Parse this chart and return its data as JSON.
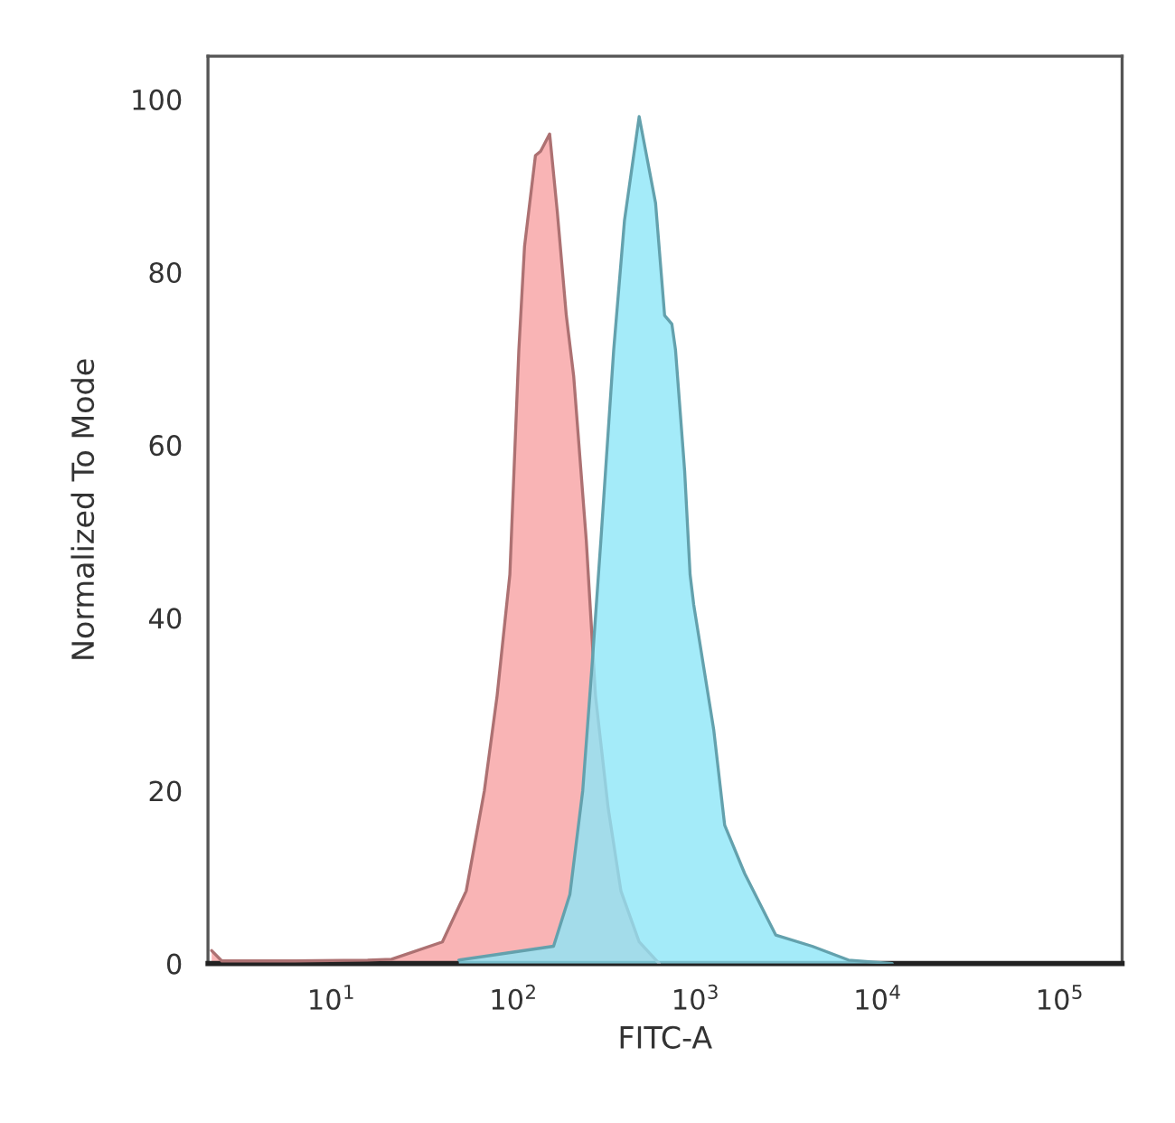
{
  "chart_data": {
    "type": "area",
    "xlabel": "FITC-A",
    "ylabel": "Normalized To Mode",
    "log": "x",
    "xlim": [
      2.1,
      220000
    ],
    "ylim": [
      0,
      105
    ],
    "xticks": [
      {
        "value": 10,
        "label": "10$^{1}$"
      },
      {
        "value": 100,
        "label": "10$^{2}$"
      },
      {
        "value": 1000,
        "label": "10$^{3}$"
      },
      {
        "value": 10000,
        "label": "10$^{4}$"
      },
      {
        "value": 100000,
        "label": "10$^{5}$"
      }
    ],
    "yticks": [
      0,
      20,
      40,
      60,
      80,
      100
    ],
    "grid": false,
    "legend": false,
    "series": [
      {
        "color": "#f7a1a3",
        "x": [
          2.2,
          2.5,
          6.3,
          15.8,
          21.4,
          40.7,
          55.0,
          69.2,
          81.3,
          95.5,
          107,
          115,
          132,
          141,
          158,
          174,
          195,
          214,
          251,
          282,
          331,
          389,
          490,
          631
        ],
        "values": [
          1.5,
          0.3,
          0.3,
          0.4,
          0.5,
          2.5,
          8.4,
          20,
          31,
          45,
          71,
          83,
          93.5,
          94,
          96,
          87,
          75,
          68,
          49,
          31,
          18,
          8.4,
          2.5,
          0
        ]
      },
      {
        "color": "#8de6f7",
        "x": [
          50.1,
          166,
          204,
          240,
          269,
          302,
          355,
          407,
          490,
          603,
          676,
          741,
          776,
          871,
          933,
          977,
          1259,
          1445,
          1862,
          2754,
          4365,
          6918,
          12023
        ],
        "values": [
          0.4,
          2,
          8,
          20,
          34,
          49,
          71,
          86,
          98,
          88,
          75,
          74,
          71,
          57,
          45,
          41.5,
          27,
          16,
          10.4,
          3.3,
          2,
          0.4,
          0
        ]
      }
    ]
  }
}
